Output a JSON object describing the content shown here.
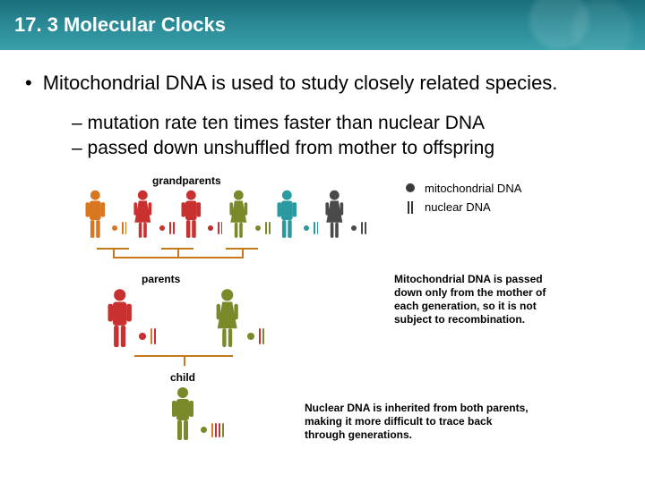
{
  "header": {
    "title": "17. 3 Molecular Clocks"
  },
  "main_bullet": "Mitochondrial DNA is used to study closely related species.",
  "sub_bullets": [
    "mutation rate ten times faster than nuclear DNA",
    "passed down unshuffled from mother to offspring"
  ],
  "labels": {
    "grandparents": "grandparents",
    "parents": "parents",
    "child": "child"
  },
  "legend": {
    "mito": "mitochondrial DNA",
    "nuclear": "nuclear DNA"
  },
  "caption_mito": "Mitochondrial DNA is passed down only from the mother of each generation, so it is not subject to recombination.",
  "caption_nuclear": "Nuclear DNA is inherited from both parents, making it more difficult to trace back through generations.",
  "colors": {
    "orange": "#d97720",
    "red": "#c93030",
    "olive": "#7a8a2a",
    "teal": "#2a9aa0",
    "gray": "#4a4a4a",
    "tree": "#c47a1a",
    "mito_dot": "#3a3a3a"
  },
  "grandparents": [
    {
      "type": "male",
      "color": "#d97720",
      "mito": "#d97720",
      "nuc": [
        "#d97720",
        "#d97720"
      ]
    },
    {
      "type": "female",
      "color": "#c93030",
      "mito": "#c93030",
      "nuc": [
        "#c93030",
        "#c93030"
      ]
    },
    {
      "type": "male",
      "color": "#c93030",
      "mito": "#b83030",
      "nuc": [
        "#c93030",
        "#c93030"
      ]
    },
    {
      "type": "female",
      "color": "#7a8a2a",
      "mito": "#7a8a2a",
      "nuc": [
        "#7a8a2a",
        "#7a8a2a"
      ]
    },
    {
      "type": "male",
      "color": "#2a9aa0",
      "mito": "#2a9aa0",
      "nuc": [
        "#2a9aa0",
        "#2a9aa0"
      ]
    },
    {
      "type": "female",
      "color": "#4a4a4a",
      "mito": "#4a4a4a",
      "nuc": [
        "#4a4a4a",
        "#4a4a4a"
      ]
    }
  ],
  "parents": [
    {
      "type": "male",
      "color": "#c93030",
      "mito": "#c93030",
      "nuc": [
        "#d97720",
        "#c93030"
      ]
    },
    {
      "type": "female",
      "color": "#7a8a2a",
      "mito": "#7a8a2a",
      "nuc": [
        "#c93030",
        "#7a8a2a"
      ]
    }
  ],
  "child": [
    {
      "type": "male",
      "color": "#7a8a2a",
      "mito": "#7a8a2a",
      "nuc": [
        "#d97720",
        "#c93030",
        "#c93030",
        "#7a8a2a"
      ]
    }
  ]
}
